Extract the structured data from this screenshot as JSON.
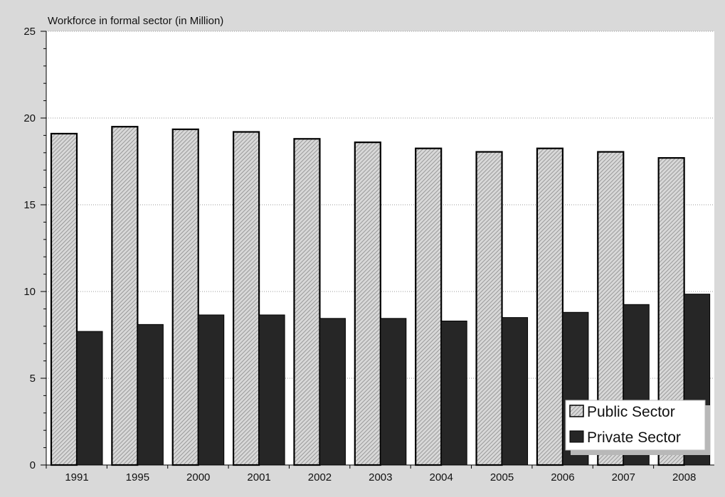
{
  "chart_data": {
    "type": "bar",
    "title": "Workforce in formal sector (in Million)",
    "categories": [
      "1991",
      "1995",
      "2000",
      "2001",
      "2002",
      "2003",
      "2004",
      "2005",
      "2006",
      "2007",
      "2008"
    ],
    "series": [
      {
        "name": "Public Sector",
        "values": [
          19.1,
          19.5,
          19.35,
          19.2,
          18.8,
          18.6,
          18.25,
          18.05,
          18.25,
          18.05,
          17.7
        ]
      },
      {
        "name": "Private Sector",
        "values": [
          7.7,
          8.1,
          8.65,
          8.65,
          8.45,
          8.45,
          8.3,
          8.5,
          8.8,
          9.25,
          9.85
        ]
      }
    ],
    "xlabel": "",
    "ylabel": "",
    "ylim": [
      0,
      25
    ],
    "yticks": [
      "0",
      "5",
      "10",
      "15",
      "20",
      "25"
    ],
    "grid": true,
    "legend_position": "bottom-right",
    "colors": {
      "plot_background": "#ffffff",
      "page_background": "#d9d9d9",
      "public_fill": "#d8d8d8",
      "public_hatch": "#8a8a8a",
      "private_fill": "#262626",
      "grid": "#9a9a9a"
    }
  }
}
